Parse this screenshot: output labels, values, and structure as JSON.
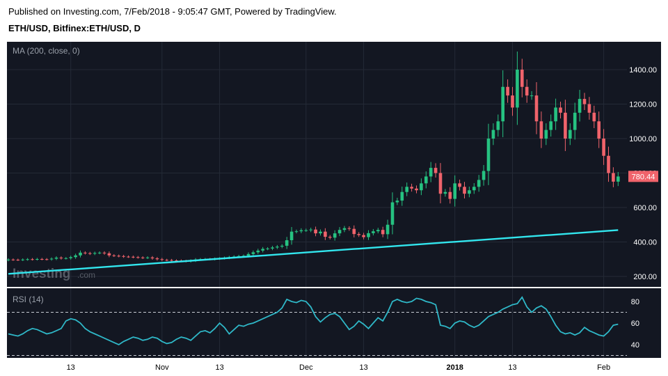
{
  "header": {
    "published": "Published on Investing.com, 7/Feb/2018 - 9:05:47 GMT, Powered by TradingView.",
    "symbol": "ETH/USD, Bitfinex:ETH/USD, D"
  },
  "watermark": {
    "brand": "Investing",
    "suffix": ".com"
  },
  "colors": {
    "background": "#131722",
    "up": "#26c281",
    "down": "#f0636b",
    "ma_line": "#32e6ee",
    "rsi_line": "#2fb8c8",
    "grid": "#242a36",
    "price_label": "#f0636b"
  },
  "chart_data": [
    {
      "type": "candlestick",
      "indicator_label": "MA (200, close, 0)",
      "last_price_label": "780.44",
      "y_ticks": [
        "1400.00",
        "1200.00",
        "1000.00",
        "800.00",
        "600.00",
        "400.00",
        "200.00"
      ],
      "ylim": [
        160,
        1520
      ],
      "x_ticks": [
        {
          "label": "13",
          "date": "2017-10-13"
        },
        {
          "label": "Nov",
          "date": "2017-11-01"
        },
        {
          "label": "13",
          "date": "2017-11-13"
        },
        {
          "label": "Dec",
          "date": "2017-12-01"
        },
        {
          "label": "13",
          "date": "2017-12-13"
        },
        {
          "label": "2018",
          "date": "2018-01-01",
          "bold": true
        },
        {
          "label": "13",
          "date": "2018-01-13"
        },
        {
          "label": "Feb",
          "date": "2018-02-01"
        }
      ],
      "first_date": "2017-09-30",
      "close": [
        298,
        297,
        296,
        298,
        300,
        299,
        301,
        300,
        299,
        303,
        309,
        305,
        306,
        312,
        322,
        338,
        335,
        332,
        336,
        338,
        334,
        322,
        320,
        318,
        315,
        314,
        312,
        310,
        308,
        310,
        305,
        300,
        296,
        295,
        293,
        292,
        290,
        288,
        292,
        298,
        300,
        301,
        300,
        303,
        305,
        308,
        312,
        315,
        318,
        320,
        330,
        340,
        350,
        360,
        362,
        368,
        373,
        378,
        410,
        460,
        462,
        468,
        468,
        472,
        450,
        460,
        430,
        425,
        450,
        470,
        480,
        476,
        446,
        440,
        428,
        451,
        462,
        470,
        445,
        500,
        630,
        640,
        690,
        720,
        710,
        700,
        740,
        780,
        830,
        800,
        680,
        690,
        650,
        740,
        720,
        680,
        700,
        720,
        760,
        812,
        1000,
        1050,
        1100,
        1300,
        1250,
        1180,
        1400,
        1300,
        1250,
        1250,
        1100,
        1000,
        1050,
        1100,
        1180,
        1150,
        1000,
        1050,
        1150,
        1230,
        1200,
        1150,
        1100,
        1000,
        900,
        800,
        750,
        780
      ],
      "series": [
        {
          "name": "MA (200, close, 0)",
          "values": [
            215,
            217,
            219,
            221,
            223,
            225,
            227,
            229,
            231,
            233,
            235,
            237,
            239,
            241,
            243,
            245,
            247,
            249,
            251,
            253,
            255,
            257,
            259,
            261,
            263,
            265,
            267,
            269,
            271,
            273,
            275,
            277,
            279,
            281,
            283,
            285,
            287,
            289,
            291,
            293,
            295,
            297,
            299,
            301,
            303,
            305,
            307,
            309,
            311,
            313,
            315,
            317,
            319,
            321,
            323,
            325,
            327,
            329,
            331,
            333,
            335,
            337,
            339,
            341,
            343,
            345,
            347,
            349,
            351,
            353,
            355,
            357,
            359,
            361,
            363,
            365,
            367,
            369,
            371,
            373,
            375,
            377,
            379,
            381,
            383,
            385,
            387,
            389,
            391,
            393,
            395,
            397,
            399,
            401,
            403,
            405,
            407,
            409,
            411,
            413,
            415,
            417,
            419,
            421,
            423,
            425,
            427,
            429,
            431,
            433,
            435,
            437,
            439,
            441,
            443,
            445,
            447,
            449,
            451,
            453,
            455,
            457,
            459,
            461,
            463,
            465,
            467,
            469
          ]
        }
      ]
    },
    {
      "type": "line",
      "indicator_label": "RSI (14)",
      "y_ticks": [
        "80",
        "60",
        "40"
      ],
      "ylim": [
        22,
        90
      ],
      "reference_lines": [
        70,
        30
      ],
      "first_date": "2017-09-30",
      "series": [
        {
          "name": "RSI (14)",
          "values": [
            50,
            49,
            48,
            50,
            53,
            55,
            54,
            52,
            50,
            51,
            53,
            55,
            62,
            64,
            63,
            60,
            55,
            52,
            50,
            48,
            46,
            44,
            42,
            40,
            43,
            45,
            47,
            46,
            44,
            45,
            47,
            46,
            43,
            41,
            42,
            45,
            47,
            46,
            44,
            48,
            52,
            53,
            51,
            55,
            60,
            56,
            50,
            54,
            58,
            57,
            59,
            60,
            62,
            64,
            66,
            68,
            70,
            74,
            82,
            80,
            79,
            81,
            80,
            75,
            66,
            61,
            65,
            68,
            69,
            66,
            60,
            54,
            57,
            62,
            59,
            55,
            60,
            65,
            62,
            70,
            80,
            82,
            80,
            79,
            80,
            83,
            82,
            80,
            79,
            77,
            58,
            57,
            55,
            60,
            62,
            61,
            58,
            56,
            58,
            62,
            66,
            68,
            70,
            73,
            75,
            77,
            78,
            84,
            75,
            70,
            74,
            76,
            73,
            66,
            58,
            52,
            50,
            51,
            49,
            51,
            56,
            53,
            51,
            49,
            48,
            52,
            58,
            59
          ]
        }
      ]
    }
  ]
}
